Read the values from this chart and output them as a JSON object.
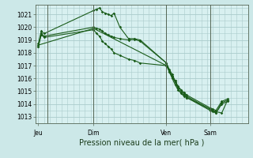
{
  "background_color": "#cce8e8",
  "plot_bg_color": "#d8f0f0",
  "grid_color": "#aacccc",
  "line_color": "#1a5c1a",
  "title": "Pression niveau de la mer( hPa )",
  "ylim": [
    1012.5,
    1021.75
  ],
  "yticks": [
    1013,
    1014,
    1015,
    1016,
    1017,
    1018,
    1019,
    1020,
    1021
  ],
  "day_labels": [
    "Jeu",
    "Dim",
    "Ven",
    "Sam"
  ],
  "day_positions": [
    0,
    9.5,
    22,
    29.5
  ],
  "vline_positions": [
    1.5,
    9.5,
    22,
    29.5
  ],
  "xlim": [
    -0.5,
    36
  ],
  "series1_x": [
    0.0,
    0.5,
    1.0,
    9.5,
    10.0,
    10.5,
    11.0,
    11.5,
    12.0,
    12.5,
    13.0,
    14.0,
    15.5,
    16.5,
    17.5,
    22.0,
    22.5,
    23.0,
    23.5,
    24.0,
    24.5,
    25.0,
    25.5,
    29.5,
    30.0,
    30.5,
    31.5,
    32.5
  ],
  "series1_y": [
    1018.7,
    1019.7,
    1019.5,
    1021.3,
    1021.4,
    1021.5,
    1021.2,
    1021.1,
    1021.0,
    1020.9,
    1021.1,
    1020.0,
    1019.1,
    1019.1,
    1019.0,
    1017.2,
    1016.7,
    1016.3,
    1015.8,
    1015.3,
    1015.1,
    1014.9,
    1014.7,
    1013.7,
    1013.6,
    1013.5,
    1014.2,
    1014.4
  ],
  "series2_x": [
    0.0,
    0.5,
    1.0,
    9.5,
    10.0,
    10.5,
    11.0,
    11.5,
    12.0,
    12.5,
    13.0,
    14.0,
    15.5,
    16.5,
    17.5,
    22.0,
    22.5,
    23.0,
    23.5,
    24.0,
    24.5,
    25.0,
    25.5,
    29.5,
    30.0,
    30.5,
    31.5,
    32.5
  ],
  "series2_y": [
    1018.5,
    1019.5,
    1019.3,
    1020.0,
    1019.9,
    1019.85,
    1019.7,
    1019.5,
    1019.4,
    1019.3,
    1019.2,
    1019.1,
    1019.0,
    1019.05,
    1018.9,
    1017.2,
    1016.5,
    1016.0,
    1015.5,
    1015.1,
    1014.85,
    1014.6,
    1014.5,
    1013.5,
    1013.4,
    1013.3,
    1014.0,
    1014.2
  ],
  "series3_x": [
    0.0,
    9.5,
    22.0,
    22.5,
    23.0,
    23.5,
    24.0,
    24.5,
    25.0,
    25.5,
    29.5,
    30.0,
    30.5,
    31.5,
    32.5
  ],
  "series3_y": [
    1018.6,
    1019.9,
    1017.0,
    1016.5,
    1016.1,
    1015.7,
    1015.2,
    1014.9,
    1014.7,
    1014.5,
    1013.6,
    1013.5,
    1013.4,
    1013.3,
    1014.3
  ],
  "series4_x": [
    0.0,
    0.5,
    1.0,
    9.5,
    10.0,
    10.5,
    11.0,
    11.5,
    12.0,
    12.5,
    13.0,
    14.0,
    15.5,
    16.5,
    17.5,
    22.0,
    22.5,
    23.0,
    23.5,
    24.0,
    24.5,
    25.0,
    25.5,
    29.5,
    30.0,
    30.5,
    31.5,
    32.5
  ],
  "series4_y": [
    1018.5,
    1019.4,
    1019.2,
    1019.8,
    1019.5,
    1019.3,
    1018.9,
    1018.7,
    1018.5,
    1018.3,
    1018.0,
    1017.8,
    1017.5,
    1017.4,
    1017.2,
    1017.0,
    1016.6,
    1016.2,
    1015.8,
    1015.4,
    1015.1,
    1014.8,
    1014.6,
    1013.6,
    1013.5,
    1013.3,
    1014.1,
    1014.3
  ],
  "title_fontsize": 7,
  "tick_fontsize": 5.5,
  "marker_size": 1.8,
  "line_width": 0.8
}
